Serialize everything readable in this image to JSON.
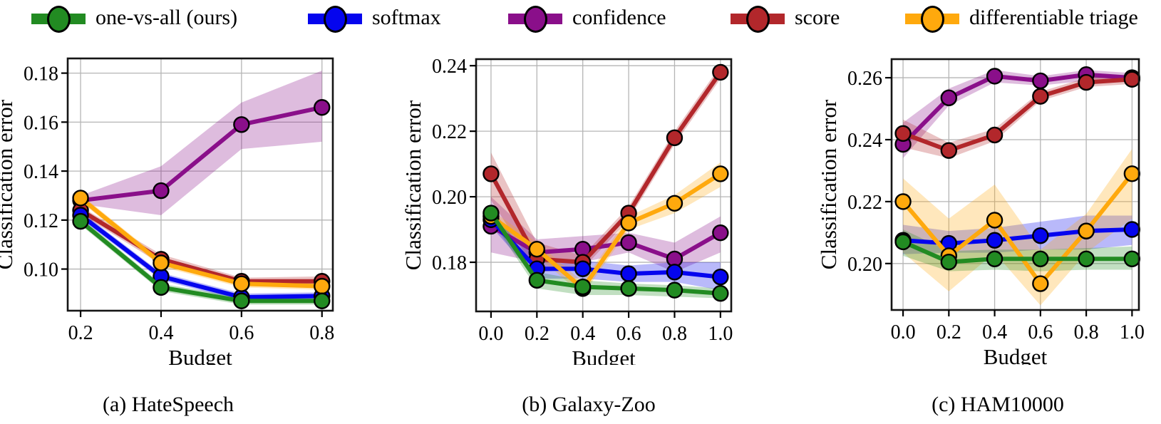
{
  "page": {
    "background": "#ffffff"
  },
  "legend": {
    "items": [
      {
        "label": "one-vs-all (ours)",
        "key": "one-vs-all",
        "color": "#228B22"
      },
      {
        "label": "softmax",
        "key": "softmax",
        "color": "#0505EE"
      },
      {
        "label": "confidence",
        "key": "confidence",
        "color": "#8A0F8A"
      },
      {
        "label": "score",
        "key": "score",
        "color": "#B2272B"
      },
      {
        "label": "differentiable triage",
        "key": "differentiable-triage",
        "color": "#FFA90D"
      }
    ]
  },
  "chart_data": [
    {
      "type": "line",
      "id": "a",
      "title": "(a) HateSpeech",
      "xlabel": "Budget",
      "ylabel": "Classification error",
      "grid": true,
      "legend_position": "above-figure",
      "x": [
        0.2,
        0.4,
        0.6,
        0.8
      ],
      "xlim": [
        0.168,
        0.827
      ],
      "ylim": [
        0.083,
        0.186
      ],
      "xticks": {
        "values": [
          0.2,
          0.4,
          0.6,
          0.8
        ],
        "labels": [
          "0.2",
          "0.4",
          "0.6",
          "0.8"
        ]
      },
      "yticks": {
        "values": [
          0.1,
          0.12,
          0.14,
          0.16,
          0.18
        ],
        "labels": [
          "0.10",
          "0.12",
          "0.14",
          "0.16",
          "0.18"
        ]
      },
      "series": [
        {
          "name": "confidence",
          "key": "confidence",
          "color": "#8A0F8A",
          "values": [
            0.128,
            0.132,
            0.159,
            0.166
          ],
          "band_lower": [
            0.1265,
            0.122,
            0.149,
            0.152
          ],
          "band_upper": [
            0.13,
            0.142,
            0.168,
            0.181
          ]
        },
        {
          "name": "score",
          "key": "score",
          "color": "#B2272B",
          "values": [
            0.124,
            0.104,
            0.095,
            0.095
          ],
          "band_lower": [
            0.1225,
            0.102,
            0.0935,
            0.093
          ],
          "band_upper": [
            0.1255,
            0.106,
            0.0965,
            0.097
          ]
        },
        {
          "name": "softmax",
          "key": "softmax",
          "color": "#0505EE",
          "values": [
            0.122,
            0.097,
            0.0885,
            0.089
          ],
          "band_lower": [
            0.1205,
            0.0955,
            0.087,
            0.0875
          ],
          "band_upper": [
            0.1235,
            0.0985,
            0.09,
            0.0905
          ]
        },
        {
          "name": "differentiable triage",
          "key": "differentiable-triage",
          "color": "#FFA90D",
          "values": [
            0.129,
            0.1025,
            0.094,
            0.093
          ],
          "band_lower": [
            0.1275,
            0.101,
            0.0925,
            0.0915
          ],
          "band_upper": [
            0.1305,
            0.104,
            0.0955,
            0.0945
          ]
        },
        {
          "name": "one-vs-all (ours)",
          "key": "one-vs-all",
          "color": "#228B22",
          "values": [
            0.1195,
            0.0925,
            0.087,
            0.087
          ],
          "band_lower": [
            0.118,
            0.091,
            0.0855,
            0.0855
          ],
          "band_upper": [
            0.121,
            0.094,
            0.0885,
            0.0885
          ]
        }
      ]
    },
    {
      "type": "line",
      "id": "b",
      "title": "(b) Galaxy-Zoo",
      "xlabel": "Budget",
      "ylabel": "Classification error",
      "grid": true,
      "legend_position": "above-figure",
      "x": [
        0.0,
        0.2,
        0.4,
        0.6,
        0.8,
        1.0
      ],
      "xlim": [
        -0.065,
        1.047
      ],
      "ylim": [
        0.165,
        0.242
      ],
      "xticks": {
        "values": [
          0.0,
          0.2,
          0.4,
          0.6,
          0.8,
          1.0
        ],
        "labels": [
          "0.0",
          "0.2",
          "0.4",
          "0.6",
          "0.8",
          "1.0"
        ]
      },
      "yticks": {
        "values": [
          0.18,
          0.2,
          0.22,
          0.24
        ],
        "labels": [
          "0.18",
          "0.20",
          "0.22",
          "0.24"
        ]
      },
      "series": [
        {
          "name": "confidence",
          "key": "confidence",
          "color": "#8A0F8A",
          "values": [
            0.191,
            0.183,
            0.184,
            0.186,
            0.181,
            0.189
          ],
          "band_lower": [
            0.183,
            0.18,
            0.18,
            0.183,
            0.177,
            0.183
          ],
          "band_upper": [
            0.2,
            0.187,
            0.188,
            0.189,
            0.186,
            0.194
          ]
        },
        {
          "name": "score",
          "key": "score",
          "color": "#B2272B",
          "values": [
            0.207,
            0.181,
            0.18,
            0.195,
            0.218,
            0.238
          ],
          "band_lower": [
            0.199,
            0.177,
            0.178,
            0.193,
            0.216,
            0.236
          ],
          "band_upper": [
            0.2135,
            0.186,
            0.182,
            0.197,
            0.22,
            0.24
          ]
        },
        {
          "name": "softmax",
          "key": "softmax",
          "color": "#0505EE",
          "values": [
            0.193,
            0.178,
            0.178,
            0.1765,
            0.177,
            0.1755
          ],
          "band_lower": [
            0.191,
            0.175,
            0.175,
            0.174,
            0.174,
            0.1715
          ],
          "band_upper": [
            0.195,
            0.181,
            0.1805,
            0.179,
            0.18,
            0.18
          ]
        },
        {
          "name": "differentiable triage",
          "key": "differentiable-triage",
          "color": "#FFA90D",
          "values": [
            0.194,
            0.184,
            0.172,
            0.192,
            0.198,
            0.207
          ],
          "band_lower": [
            0.192,
            0.182,
            0.17,
            0.19,
            0.195,
            0.203
          ],
          "band_upper": [
            0.196,
            0.186,
            0.174,
            0.194,
            0.2005,
            0.2105
          ]
        },
        {
          "name": "one-vs-all (ours)",
          "key": "one-vs-all",
          "color": "#228B22",
          "values": [
            0.195,
            0.1745,
            0.1725,
            0.172,
            0.1715,
            0.1705
          ],
          "band_lower": [
            0.193,
            0.172,
            0.17,
            0.17,
            0.1695,
            0.169
          ],
          "band_upper": [
            0.197,
            0.177,
            0.1745,
            0.1735,
            0.173,
            0.172
          ]
        }
      ]
    },
    {
      "type": "line",
      "id": "c",
      "title": "(c) HAM10000",
      "xlabel": "Budget",
      "ylabel": "Classification error",
      "grid": true,
      "legend_position": "above-figure",
      "x": [
        0.0,
        0.2,
        0.4,
        0.6,
        0.8,
        1.0
      ],
      "xlim": [
        -0.05,
        1.03
      ],
      "ylim": [
        0.185,
        0.266
      ],
      "xticks": {
        "values": [
          0.0,
          0.2,
          0.4,
          0.6,
          0.8,
          1.0
        ],
        "labels": [
          "0.0",
          "0.2",
          "0.4",
          "0.6",
          "0.8",
          "1.0"
        ]
      },
      "yticks": {
        "values": [
          0.2,
          0.22,
          0.24,
          0.26
        ],
        "labels": [
          "0.20",
          "0.22",
          "0.24",
          "0.26"
        ]
      },
      "series": [
        {
          "name": "confidence",
          "key": "confidence",
          "color": "#8A0F8A",
          "values": [
            0.2385,
            0.2535,
            0.2605,
            0.259,
            0.261,
            0.26
          ],
          "band_lower": [
            0.234,
            0.251,
            0.2585,
            0.2575,
            0.259,
            0.2585
          ],
          "band_upper": [
            0.2455,
            0.2565,
            0.2625,
            0.2605,
            0.2625,
            0.2615
          ]
        },
        {
          "name": "score",
          "key": "score",
          "color": "#B2272B",
          "values": [
            0.242,
            0.2365,
            0.2415,
            0.254,
            0.2585,
            0.2595
          ],
          "band_lower": [
            0.2375,
            0.234,
            0.2395,
            0.2525,
            0.257,
            0.258
          ],
          "band_upper": [
            0.2465,
            0.239,
            0.2435,
            0.2555,
            0.26,
            0.261
          ]
        },
        {
          "name": "softmax",
          "key": "softmax",
          "color": "#0505EE",
          "values": [
            0.2075,
            0.2065,
            0.2075,
            0.209,
            0.2105,
            0.211
          ],
          "band_lower": [
            0.203,
            0.2035,
            0.2035,
            0.2045,
            0.2045,
            0.206
          ],
          "band_upper": [
            0.2125,
            0.2105,
            0.2115,
            0.2135,
            0.2155,
            0.2155
          ]
        },
        {
          "name": "differentiable triage",
          "key": "differentiable-triage",
          "color": "#FFA90D",
          "values": [
            0.22,
            0.2025,
            0.214,
            0.1935,
            0.2105,
            0.229
          ],
          "band_lower": [
            0.2035,
            0.191,
            0.2035,
            0.1865,
            0.2035,
            0.2145
          ],
          "band_upper": [
            0.2275,
            0.2145,
            0.2255,
            0.2045,
            0.216,
            0.237
          ]
        },
        {
          "name": "one-vs-all (ours)",
          "key": "one-vs-all",
          "color": "#228B22",
          "values": [
            0.207,
            0.2005,
            0.2015,
            0.2015,
            0.2015,
            0.2015
          ],
          "band_lower": [
            0.2025,
            0.1975,
            0.198,
            0.1975,
            0.198,
            0.198
          ],
          "band_upper": [
            0.211,
            0.204,
            0.2045,
            0.2045,
            0.205,
            0.2055
          ]
        }
      ]
    }
  ]
}
